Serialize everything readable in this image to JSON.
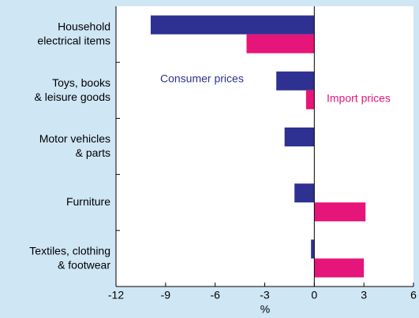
{
  "chart_data": {
    "type": "hbar",
    "categories": [
      "Household\nelectrical items",
      "Toys, books\n& leisure goods",
      "Motor vehicles\n& parts",
      "Furniture",
      "Textiles, clothing\n& footwear"
    ],
    "series": [
      {
        "name": "Consumer prices",
        "color": "#2e3192",
        "values": [
          -9.9,
          -2.3,
          -1.8,
          -1.2,
          -0.2
        ]
      },
      {
        "name": "Import prices",
        "color": "#e6157a",
        "values": [
          -4.1,
          -0.5,
          null,
          3.1,
          3.0
        ]
      }
    ],
    "xlim": [
      -12,
      6
    ],
    "xticks": [
      -12,
      -9,
      -6,
      -3,
      0,
      3,
      6
    ],
    "xlabel": "%"
  }
}
